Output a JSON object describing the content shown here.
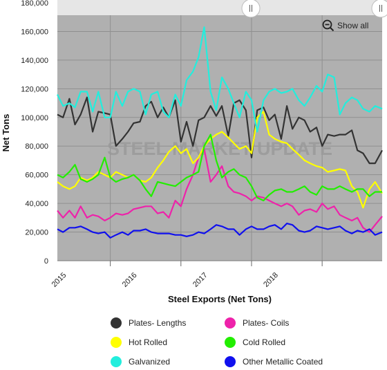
{
  "show_all_label": "Show all",
  "watermark": "STEEL MARKET UPDATE",
  "colors": {
    "plot_bg": "#b0b0b0",
    "grid": "#8f8f8f",
    "navigator_bg": "#e6e6e6"
  },
  "chart_data": {
    "type": "line",
    "title": "",
    "xlabel": "Steel Exports (Net Tons)",
    "ylabel": "Net Tons",
    "x_range": [
      2014.25,
      2018.85
    ],
    "ylim": [
      0,
      180000
    ],
    "y_ticks": [
      0,
      20000,
      40000,
      60000,
      80000,
      100000,
      120000,
      140000,
      160000,
      180000
    ],
    "y_tick_labels": [
      "0",
      "20,000",
      "40,000",
      "60,000",
      "80,000",
      "100,000",
      "120,000",
      "140,000",
      "160,000",
      "180,000"
    ],
    "x_ticks": [
      2015,
      2016,
      2017,
      2018
    ],
    "x_tick_labels": [
      "2015",
      "2016",
      "2017",
      "2018"
    ],
    "legend_position": "bottom",
    "grid": true,
    "series": [
      {
        "name": "Plates- Lengths",
        "color": "#333333",
        "x": [
          2014.25,
          2014.33,
          2014.42,
          2014.5,
          2014.58,
          2014.67,
          2014.75,
          2014.83,
          2014.92,
          2015.0,
          2015.08,
          2015.17,
          2015.25,
          2015.33,
          2015.42,
          2015.5,
          2015.58,
          2015.67,
          2015.75,
          2015.83,
          2015.92,
          2016.0,
          2016.08,
          2016.17,
          2016.25,
          2016.33,
          2016.42,
          2016.5,
          2016.58,
          2016.67,
          2016.75,
          2016.83,
          2016.92,
          2017.0,
          2017.08,
          2017.17,
          2017.25,
          2017.33,
          2017.42,
          2017.5,
          2017.58,
          2017.67,
          2017.75,
          2017.83,
          2017.92,
          2018.0,
          2018.08,
          2018.17,
          2018.25,
          2018.33,
          2018.42,
          2018.5,
          2018.58,
          2018.67,
          2018.75,
          2018.85
        ],
        "values": [
          102000,
          100000,
          113000,
          95000,
          102000,
          114000,
          90000,
          104000,
          103000,
          102000,
          80000,
          85000,
          90000,
          96000,
          97000,
          108000,
          111000,
          100000,
          107000,
          100000,
          112000,
          83000,
          97000,
          80000,
          98000,
          100000,
          108000,
          101000,
          108000,
          87000,
          110000,
          112000,
          105000,
          72000,
          105000,
          107000,
          98000,
          102000,
          85000,
          108000,
          92000,
          100000,
          98000,
          90000,
          93000,
          80000,
          88000,
          87000,
          88000,
          88000,
          91000,
          77000,
          75000,
          68000,
          68000,
          77000
        ]
      },
      {
        "name": "Plates- Coils",
        "color": "#ee22aa",
        "x": [
          2014.25,
          2014.33,
          2014.42,
          2014.5,
          2014.58,
          2014.67,
          2014.75,
          2014.83,
          2014.92,
          2015.0,
          2015.08,
          2015.17,
          2015.25,
          2015.33,
          2015.42,
          2015.5,
          2015.58,
          2015.67,
          2015.75,
          2015.83,
          2015.92,
          2016.0,
          2016.08,
          2016.17,
          2016.25,
          2016.33,
          2016.42,
          2016.5,
          2016.58,
          2016.67,
          2016.75,
          2016.83,
          2016.92,
          2017.0,
          2017.08,
          2017.17,
          2017.25,
          2017.33,
          2017.42,
          2017.5,
          2017.58,
          2017.67,
          2017.75,
          2017.83,
          2017.92,
          2018.0,
          2018.08,
          2018.17,
          2018.25,
          2018.33,
          2018.42,
          2018.5,
          2018.58,
          2018.67,
          2018.75,
          2018.85
        ],
        "values": [
          35000,
          30000,
          35000,
          30000,
          38000,
          30000,
          32000,
          31000,
          28000,
          30000,
          33000,
          32000,
          33000,
          36000,
          37000,
          38000,
          38000,
          33000,
          34000,
          30000,
          42000,
          38000,
          50000,
          60000,
          72000,
          78000,
          55000,
          60000,
          66000,
          52000,
          48000,
          47000,
          45000,
          42000,
          45000,
          44000,
          42000,
          40000,
          38000,
          40000,
          38000,
          32000,
          35000,
          36000,
          34000,
          40000,
          36000,
          38000,
          32000,
          30000,
          28000,
          30000,
          23000,
          20000,
          25000,
          31000
        ]
      },
      {
        "name": "Hot Rolled",
        "color": "#ffff00",
        "x": [
          2014.25,
          2014.33,
          2014.42,
          2014.5,
          2014.58,
          2014.67,
          2014.75,
          2014.83,
          2014.92,
          2015.0,
          2015.08,
          2015.17,
          2015.25,
          2015.33,
          2015.42,
          2015.5,
          2015.58,
          2015.67,
          2015.75,
          2015.83,
          2015.92,
          2016.0,
          2016.08,
          2016.17,
          2016.25,
          2016.33,
          2016.42,
          2016.5,
          2016.58,
          2016.67,
          2016.75,
          2016.83,
          2016.92,
          2017.0,
          2017.08,
          2017.17,
          2017.25,
          2017.33,
          2017.42,
          2017.5,
          2017.58,
          2017.67,
          2017.75,
          2017.83,
          2017.92,
          2018.0,
          2018.08,
          2018.17,
          2018.25,
          2018.33,
          2018.42,
          2018.5,
          2018.58,
          2018.67,
          2018.75,
          2018.85
        ],
        "values": [
          55000,
          52000,
          50000,
          52000,
          58000,
          56000,
          58000,
          62000,
          60000,
          58000,
          62000,
          60000,
          58000,
          60000,
          56000,
          55000,
          58000,
          65000,
          70000,
          76000,
          80000,
          75000,
          78000,
          68000,
          72000,
          80000,
          85000,
          88000,
          90000,
          86000,
          82000,
          78000,
          80000,
          75000,
          100000,
          104000,
          88000,
          85000,
          83000,
          82000,
          78000,
          74000,
          70000,
          68000,
          66000,
          65000,
          62000,
          63000,
          64000,
          63000,
          52000,
          48000,
          37000,
          50000,
          55000,
          47000
        ]
      },
      {
        "name": "Cold Rolled",
        "color": "#22ee00",
        "x": [
          2014.25,
          2014.33,
          2014.42,
          2014.5,
          2014.58,
          2014.67,
          2014.75,
          2014.83,
          2014.92,
          2015.0,
          2015.08,
          2015.17,
          2015.25,
          2015.33,
          2015.42,
          2015.5,
          2015.58,
          2015.67,
          2015.75,
          2015.83,
          2015.92,
          2016.0,
          2016.08,
          2016.17,
          2016.25,
          2016.33,
          2016.42,
          2016.5,
          2016.58,
          2016.67,
          2016.75,
          2016.83,
          2016.92,
          2017.0,
          2017.08,
          2017.17,
          2017.25,
          2017.33,
          2017.42,
          2017.5,
          2017.58,
          2017.67,
          2017.75,
          2017.83,
          2017.92,
          2018.0,
          2018.08,
          2018.17,
          2018.25,
          2018.33,
          2018.42,
          2018.5,
          2018.58,
          2018.67,
          2018.75,
          2018.85
        ],
        "values": [
          60000,
          58000,
          62000,
          67000,
          57000,
          55000,
          57000,
          60000,
          72000,
          58000,
          55000,
          57000,
          58000,
          60000,
          56000,
          50000,
          45000,
          55000,
          54000,
          53000,
          52000,
          55000,
          58000,
          60000,
          62000,
          80000,
          88000,
          70000,
          58000,
          62000,
          64000,
          60000,
          58000,
          52000,
          44000,
          42000,
          46000,
          49000,
          50000,
          48000,
          48000,
          50000,
          52000,
          48000,
          46000,
          52000,
          50000,
          50000,
          52000,
          50000,
          48000,
          50000,
          50000,
          45000,
          48000,
          48000
        ]
      },
      {
        "name": "Galvanized",
        "color": "#22eedd",
        "x": [
          2014.25,
          2014.33,
          2014.42,
          2014.5,
          2014.58,
          2014.67,
          2014.75,
          2014.83,
          2014.92,
          2015.0,
          2015.08,
          2015.17,
          2015.25,
          2015.33,
          2015.42,
          2015.5,
          2015.58,
          2015.67,
          2015.75,
          2015.83,
          2015.92,
          2016.0,
          2016.08,
          2016.17,
          2016.25,
          2016.33,
          2016.42,
          2016.5,
          2016.58,
          2016.67,
          2016.75,
          2016.83,
          2016.92,
          2017.0,
          2017.08,
          2017.17,
          2017.25,
          2017.33,
          2017.42,
          2017.5,
          2017.58,
          2017.67,
          2017.75,
          2017.83,
          2017.92,
          2018.0,
          2018.08,
          2018.17,
          2018.25,
          2018.33,
          2018.42,
          2018.5,
          2018.58,
          2018.67,
          2018.75,
          2018.85
        ],
        "values": [
          116000,
          108000,
          110000,
          107000,
          118000,
          118000,
          104000,
          118000,
          100000,
          100000,
          118000,
          108000,
          118000,
          120000,
          118000,
          102000,
          116000,
          118000,
          104000,
          100000,
          116000,
          108000,
          126000,
          132000,
          142000,
          163000,
          118000,
          105000,
          128000,
          120000,
          110000,
          100000,
          118000,
          112000,
          90000,
          112000,
          118000,
          120000,
          117000,
          118000,
          120000,
          112000,
          108000,
          114000,
          122000,
          118000,
          130000,
          128000,
          102000,
          110000,
          114000,
          112000,
          106000,
          104000,
          108000,
          106000
        ]
      },
      {
        "name": "Other Metallic Coated",
        "color": "#1010ee",
        "x": [
          2014.25,
          2014.33,
          2014.42,
          2014.5,
          2014.58,
          2014.67,
          2014.75,
          2014.83,
          2014.92,
          2015.0,
          2015.08,
          2015.17,
          2015.25,
          2015.33,
          2015.42,
          2015.5,
          2015.58,
          2015.67,
          2015.75,
          2015.83,
          2015.92,
          2016.0,
          2016.08,
          2016.17,
          2016.25,
          2016.33,
          2016.42,
          2016.5,
          2016.58,
          2016.67,
          2016.75,
          2016.83,
          2016.92,
          2017.0,
          2017.08,
          2017.17,
          2017.25,
          2017.33,
          2017.42,
          2017.5,
          2017.58,
          2017.67,
          2017.75,
          2017.83,
          2017.92,
          2018.0,
          2018.08,
          2018.17,
          2018.25,
          2018.33,
          2018.42,
          2018.5,
          2018.58,
          2018.67,
          2018.75,
          2018.85
        ],
        "values": [
          22000,
          20000,
          23000,
          23000,
          24000,
          22000,
          20000,
          19000,
          20000,
          16000,
          18000,
          20000,
          18000,
          21000,
          21000,
          22000,
          20000,
          19000,
          19000,
          19000,
          18000,
          18000,
          17000,
          18000,
          20000,
          19000,
          22000,
          25000,
          24000,
          22000,
          22000,
          18000,
          22000,
          24000,
          22000,
          22000,
          24000,
          25000,
          22000,
          26000,
          25000,
          21000,
          20000,
          21000,
          24000,
          23000,
          22000,
          23000,
          24000,
          21000,
          19000,
          21000,
          20000,
          22000,
          18000,
          20000
        ]
      }
    ]
  }
}
